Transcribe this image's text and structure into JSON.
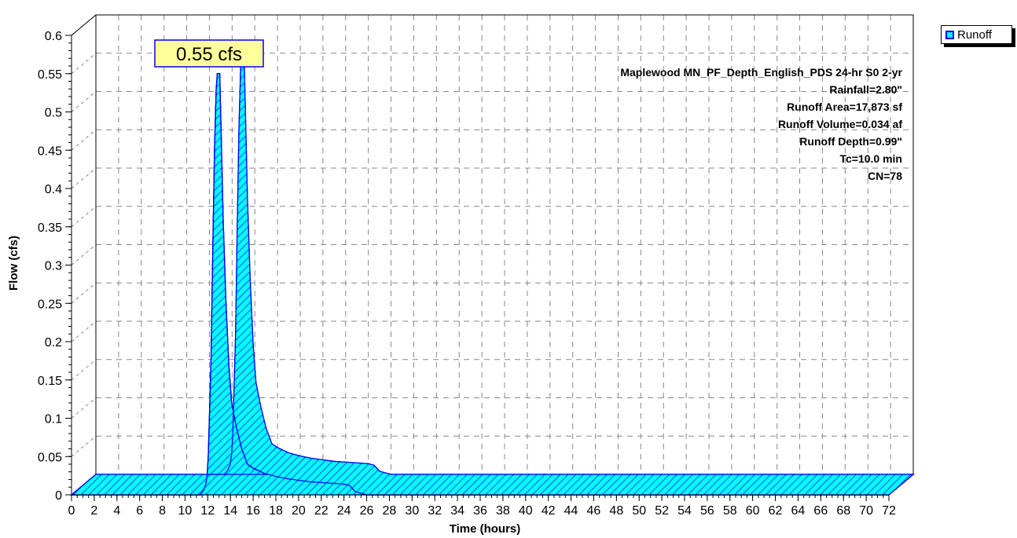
{
  "chart_data": {
    "type": "area",
    "x": [
      0,
      11.3,
      11.6,
      11.8,
      11.95,
      12.05,
      12.15,
      12.3,
      12.45,
      12.6,
      12.75,
      12.85,
      12.9,
      13.05,
      13.35,
      13.6,
      13.85,
      14.1,
      14.5,
      15.0,
      15.5,
      16.0,
      17.0,
      18.0,
      19.0,
      20.0,
      21.0,
      22.0,
      23.0,
      24.0,
      24.5,
      25.0,
      26.0,
      72
    ],
    "series": [
      {
        "name": "Runoff",
        "values": [
          0,
          0,
          0.005,
          0.012,
          0.025,
          0.05,
          0.1,
          0.18,
          0.32,
          0.45,
          0.53,
          0.55,
          0.55,
          0.55,
          0.36,
          0.25,
          0.17,
          0.12,
          0.09,
          0.06,
          0.04,
          0.035,
          0.028,
          0.024,
          0.021,
          0.019,
          0.017,
          0.016,
          0.015,
          0.014,
          0.012,
          0.004,
          0,
          0
        ]
      }
    ],
    "xlabel": "Time  (hours)",
    "ylabel": "Flow  (cfs)",
    "xlim": [
      0,
      72
    ],
    "ylim": [
      0,
      0.6
    ],
    "xticks": [
      0,
      2,
      4,
      6,
      8,
      10,
      12,
      14,
      16,
      18,
      20,
      22,
      24,
      26,
      28,
      30,
      32,
      34,
      36,
      38,
      40,
      42,
      44,
      46,
      48,
      50,
      52,
      54,
      56,
      58,
      60,
      62,
      64,
      66,
      68,
      70,
      72
    ],
    "yticks": [
      {
        "v": 0,
        "label": "0"
      },
      {
        "v": 0.05,
        "label": "0.05"
      },
      {
        "v": 0.1,
        "label": "0.1"
      },
      {
        "v": 0.15,
        "label": "0.15"
      },
      {
        "v": 0.2,
        "label": "0.2"
      },
      {
        "v": 0.25,
        "label": "0.25"
      },
      {
        "v": 0.3,
        "label": "0.3"
      },
      {
        "v": 0.35,
        "label": "0.35"
      },
      {
        "v": 0.4,
        "label": "0.4"
      },
      {
        "v": 0.45,
        "label": "0.45"
      },
      {
        "v": 0.5,
        "label": "0.5"
      },
      {
        "v": 0.55,
        "label": "0.55"
      },
      {
        "v": 0.6,
        "label": "0.6"
      }
    ],
    "grid": true,
    "legend": "top-right",
    "peak_label": "0.55 cfs",
    "peak": {
      "x": 12.9,
      "y": 0.55
    },
    "info_lines": [
      "Maplewood MN_PF_Depth_English_PDS 24-hr S0 2-yr",
      "Rainfall=2.80\"",
      "Runoff Area=17,873 sf",
      "Runoff Volume=0.034 af",
      "Runoff Depth=0.99\"",
      "Tc=10.0 min",
      "CN=78"
    ],
    "colors": {
      "fill": "#00ffff",
      "stroke": "#0000ff",
      "peak_label_bg": "#ffff99",
      "grid": "#888888"
    }
  },
  "legend": {
    "label": "Runoff"
  }
}
